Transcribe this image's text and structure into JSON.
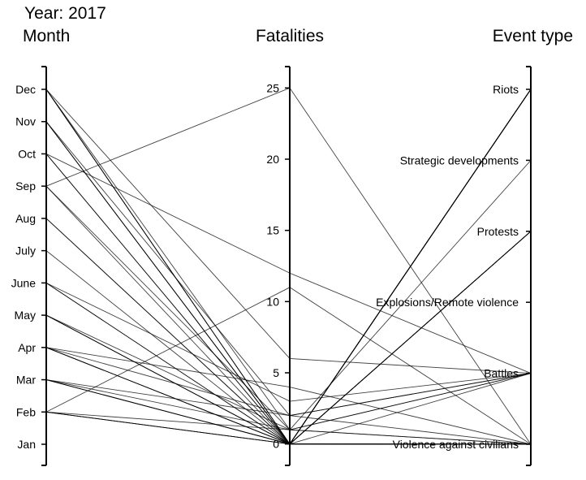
{
  "chart_data": {
    "type": "parallel_coordinates",
    "title": "Year: 2017",
    "axes": [
      {
        "key": "month",
        "label": "Month",
        "ticks": [
          "Jan",
          "Feb",
          "Mar",
          "Apr",
          "May",
          "June",
          "July",
          "Aug",
          "Sep",
          "Oct",
          "Nov",
          "Dec"
        ]
      },
      {
        "key": "fatalities",
        "label": "Fatalities",
        "ticks": [
          0,
          5,
          10,
          15,
          20,
          25
        ],
        "range": [
          -1.5,
          26.5
        ]
      },
      {
        "key": "event_type",
        "label": "Event type",
        "ticks": [
          "Violence against civilians",
          "Battles",
          "Explosions/Remote violence",
          "Protests",
          "Strategic developments",
          "Riots"
        ]
      }
    ],
    "records": [
      {
        "month": "Feb",
        "fatalities": 0,
        "event_type": "Riots"
      },
      {
        "month": "Feb",
        "fatalities": 0,
        "event_type": "Violence against civilians"
      },
      {
        "month": "Feb",
        "fatalities": 11,
        "event_type": "Violence against civilians"
      },
      {
        "month": "Feb",
        "fatalities": 1,
        "event_type": "Battles"
      },
      {
        "month": "Feb",
        "fatalities": 0,
        "event_type": "Protests"
      },
      {
        "month": "Mar",
        "fatalities": 0,
        "event_type": "Riots"
      },
      {
        "month": "Mar",
        "fatalities": 0,
        "event_type": "Violence against civilians"
      },
      {
        "month": "Mar",
        "fatalities": 1,
        "event_type": "Battles"
      },
      {
        "month": "Mar",
        "fatalities": 2,
        "event_type": "Violence against civilians"
      },
      {
        "month": "Mar",
        "fatalities": 0,
        "event_type": "Protests"
      },
      {
        "month": "Apr",
        "fatalities": 0,
        "event_type": "Riots"
      },
      {
        "month": "Apr",
        "fatalities": 0,
        "event_type": "Violence against civilians"
      },
      {
        "month": "Apr",
        "fatalities": 4,
        "event_type": "Violence against civilians"
      },
      {
        "month": "Apr",
        "fatalities": 2,
        "event_type": "Battles"
      },
      {
        "month": "Apr",
        "fatalities": 0,
        "event_type": "Protests"
      },
      {
        "month": "May",
        "fatalities": 0,
        "event_type": "Riots"
      },
      {
        "month": "May",
        "fatalities": 0,
        "event_type": "Violence against civilians"
      },
      {
        "month": "May",
        "fatalities": 1,
        "event_type": "Violence against civilians"
      },
      {
        "month": "May",
        "fatalities": 0,
        "event_type": "Battles"
      },
      {
        "month": "June",
        "fatalities": 0,
        "event_type": "Riots"
      },
      {
        "month": "June",
        "fatalities": 0,
        "event_type": "Violence against civilians"
      },
      {
        "month": "June",
        "fatalities": 3,
        "event_type": "Battles"
      },
      {
        "month": "July",
        "fatalities": 0,
        "event_type": "Riots"
      },
      {
        "month": "Aug",
        "fatalities": 0,
        "event_type": "Riots"
      },
      {
        "month": "Aug",
        "fatalities": 0,
        "event_type": "Violence against civilians"
      },
      {
        "month": "Sep",
        "fatalities": 25,
        "event_type": "Violence against civilians"
      },
      {
        "month": "Sep",
        "fatalities": 0,
        "event_type": "Riots"
      },
      {
        "month": "Sep",
        "fatalities": 1,
        "event_type": "Strategic developments"
      },
      {
        "month": "Oct",
        "fatalities": 0,
        "event_type": "Riots"
      },
      {
        "month": "Oct",
        "fatalities": 12,
        "event_type": "Battles"
      },
      {
        "month": "Oct",
        "fatalities": 0,
        "event_type": "Protests"
      },
      {
        "month": "Nov",
        "fatalities": 0,
        "event_type": "Riots"
      },
      {
        "month": "Nov",
        "fatalities": 0,
        "event_type": "Violence against civilians"
      },
      {
        "month": "Nov",
        "fatalities": 2,
        "event_type": "Battles"
      },
      {
        "month": "Nov",
        "fatalities": 0,
        "event_type": "Protests"
      },
      {
        "month": "Dec",
        "fatalities": 0,
        "event_type": "Riots"
      },
      {
        "month": "Dec",
        "fatalities": 0,
        "event_type": "Violence against civilians"
      },
      {
        "month": "Dec",
        "fatalities": 6,
        "event_type": "Battles"
      },
      {
        "month": "Dec",
        "fatalities": 1,
        "event_type": "Violence against civilians"
      },
      {
        "month": "Dec",
        "fatalities": 0,
        "event_type": "Protests"
      }
    ],
    "line_color": "#000000",
    "grid": false,
    "legend": "none"
  }
}
